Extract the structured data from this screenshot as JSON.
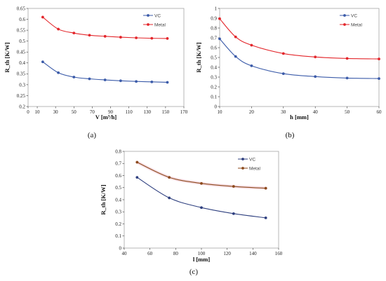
{
  "chart_data": [
    {
      "type": "line",
      "caption": "(a)",
      "xlabel": "V [m³/h]",
      "ylabel": "R_th [K/W]",
      "xlim": [
        0,
        170
      ],
      "ylim": [
        0.2,
        0.65
      ],
      "xticks": [
        0,
        10,
        30,
        50,
        70,
        90,
        110,
        130,
        150,
        170
      ],
      "yticks": [
        0.2,
        0.25,
        0.3,
        0.35,
        0.4,
        0.45,
        0.5,
        0.55,
        0.6,
        0.65
      ],
      "ytick_labels": [
        "0.2",
        "0.25",
        "0.3",
        "0.35",
        "0.4",
        "0.45",
        "0.5",
        "0.55",
        "0.6",
        "0.65"
      ],
      "legend_position": "top-right",
      "series": [
        {
          "name": "VC",
          "color": "#3b5ba9",
          "x": [
            16,
            33,
            50,
            67,
            84,
            101,
            118,
            135,
            152
          ],
          "y": [
            0.405,
            0.355,
            0.335,
            0.327,
            0.322,
            0.318,
            0.315,
            0.313,
            0.311
          ]
        },
        {
          "name": "Metal",
          "color": "#e3262b",
          "x": [
            16,
            33,
            50,
            67,
            84,
            101,
            118,
            135,
            152
          ],
          "y": [
            0.61,
            0.555,
            0.537,
            0.527,
            0.522,
            0.518,
            0.515,
            0.513,
            0.512
          ]
        }
      ]
    },
    {
      "type": "line",
      "caption": "(b)",
      "xlabel": "h [mm]",
      "ylabel": "R_th [K/W]",
      "xlim": [
        10,
        60
      ],
      "ylim": [
        0,
        1
      ],
      "xticks": [
        10,
        20,
        30,
        40,
        50,
        60
      ],
      "yticks": [
        0,
        0.1,
        0.2,
        0.3,
        0.4,
        0.5,
        0.6,
        0.7,
        0.8,
        0.9,
        1
      ],
      "ytick_labels": [
        "0",
        "0.1",
        "0.2",
        "0.3",
        "0.4",
        "0.5",
        "0.6",
        "0.7",
        "0.8",
        "0.9",
        "1"
      ],
      "legend_position": "top-right",
      "series": [
        {
          "name": "VC",
          "color": "#3b5ba9",
          "x": [
            10,
            15,
            20,
            30,
            40,
            50,
            60
          ],
          "y": [
            0.69,
            0.51,
            0.415,
            0.335,
            0.305,
            0.29,
            0.285
          ]
        },
        {
          "name": "Metal",
          "color": "#e3262b",
          "x": [
            10,
            15,
            20,
            30,
            40,
            50,
            60
          ],
          "y": [
            0.895,
            0.71,
            0.625,
            0.54,
            0.505,
            0.49,
            0.485
          ]
        }
      ]
    },
    {
      "type": "line",
      "caption": "(c)",
      "xlabel": "l [mm]",
      "ylabel": "R_th [K/W]",
      "xlim": [
        40,
        160
      ],
      "ylim": [
        0,
        0.8
      ],
      "xticks": [
        40,
        60,
        80,
        100,
        120,
        140,
        160
      ],
      "yticks": [
        0,
        0.1,
        0.2,
        0.3,
        0.4,
        0.5,
        0.6,
        0.7,
        0.8
      ],
      "ytick_labels": [
        "0",
        "0.1",
        "0.2",
        "0.3",
        "0.4",
        "0.5",
        "0.6",
        "0.7",
        "0.8"
      ],
      "legend_position": "top-right",
      "series": [
        {
          "name": "VC",
          "color": "#2e3f7f",
          "x": [
            50,
            75,
            100,
            125,
            150
          ],
          "y": [
            0.585,
            0.415,
            0.335,
            0.285,
            0.25
          ]
        },
        {
          "name": "Metal",
          "color": "#8b4a1c",
          "x": [
            50,
            75,
            100,
            125,
            150
          ],
          "y": [
            0.71,
            0.585,
            0.535,
            0.51,
            0.495
          ]
        }
      ]
    }
  ]
}
